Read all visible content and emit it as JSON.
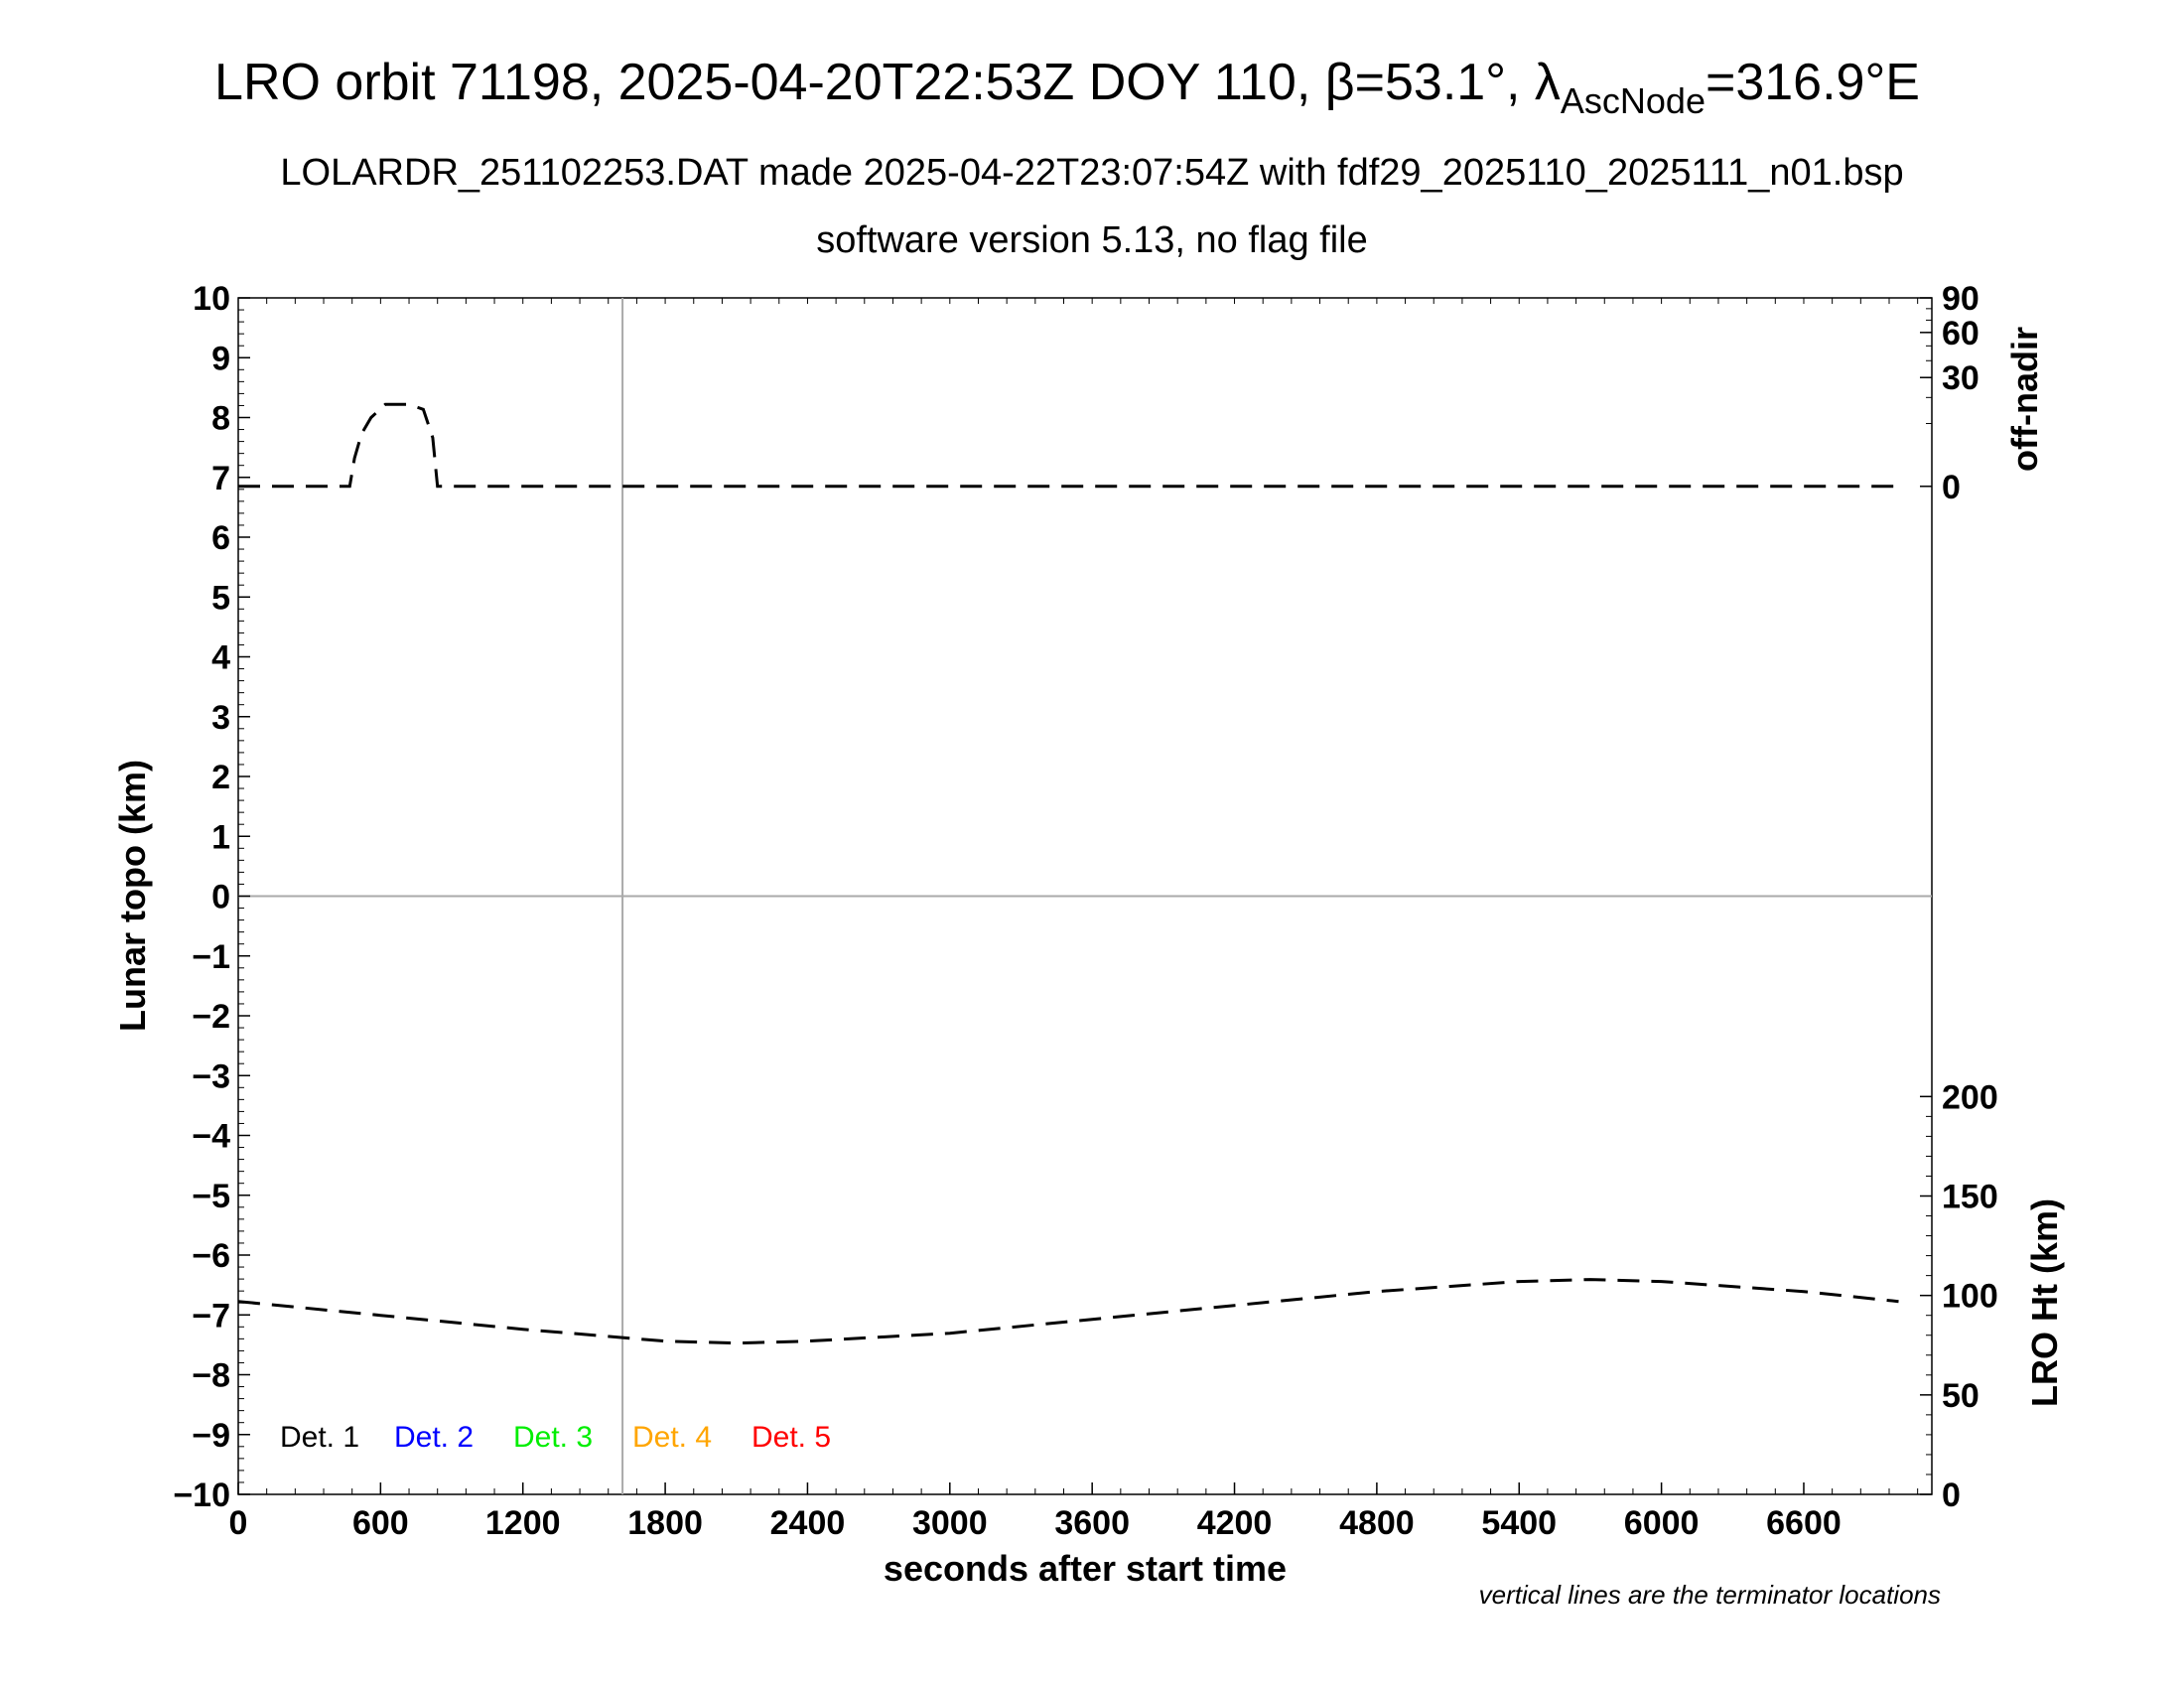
{
  "title": {
    "main_prefix": "LRO orbit 71198, 2025-04-20T22:53Z DOY 110, β=53.1°, λ",
    "main_sub": "AscNode",
    "main_suffix": "=316.9°E",
    "line2": "LOLARDR_251102253.DAT made 2025-04-22T23:07:54Z with fdf29_2025110_2025111_n01.bsp",
    "line3": "software version 5.13, no flag file"
  },
  "footnote": "vertical lines are the terminator locations",
  "legend": [
    {
      "label": "Det. 1",
      "color": "#000000"
    },
    {
      "label": "Det. 2",
      "color": "#0000ff"
    },
    {
      "label": "Det. 3",
      "color": "#00ee00"
    },
    {
      "label": "Det. 4",
      "color": "#ffa500"
    },
    {
      "label": "Det. 5",
      "color": "#ff0000"
    }
  ],
  "chart_data": {
    "type": "line",
    "xlabel": "seconds after start time",
    "ylabel": "Lunar topo (km)",
    "xlim": [
      0,
      7140
    ],
    "ylim": [
      -10,
      10
    ],
    "x_ticks": [
      "0",
      "600",
      "1200",
      "1800",
      "2400",
      "3000",
      "3600",
      "4200",
      "4800",
      "5400",
      "6000",
      "6600"
    ],
    "y_ticks": [
      "10",
      "9",
      "8",
      "7",
      "6",
      "5",
      "4",
      "3",
      "2",
      "1",
      "0",
      "−1",
      "−2",
      "−3",
      "−4",
      "−5",
      "−6",
      "−7",
      "−8",
      "−9",
      "−10"
    ],
    "terminator_x": [
      1620
    ],
    "right_axis_top": {
      "label": "off-nadir",
      "tick_labels": [
        "90",
        "60",
        "30",
        "0"
      ],
      "tick_values": [
        90,
        60,
        30,
        0
      ]
    },
    "right_axis_bottom": {
      "label": "LRO Ht (km)",
      "tick_labels": [
        "200",
        "150",
        "100",
        "50",
        "0"
      ],
      "tick_values": [
        200,
        150,
        100,
        50,
        0
      ],
      "range": [
        0,
        200
      ]
    },
    "series": [
      {
        "axis": "off-nadir",
        "style": "dashed",
        "x": [
          0,
          470,
          490,
          520,
          560,
          620,
          720,
          780,
          820,
          840,
          1200,
          2400,
          3600,
          4800,
          6000,
          7000
        ],
        "values": [
          0,
          0,
          2,
          7,
          12,
          17,
          17,
          15,
          6,
          0,
          0,
          0,
          0,
          0,
          0,
          0
        ]
      },
      {
        "axis": "LRO Ht (km)",
        "style": "dashed",
        "x": [
          0,
          600,
          1200,
          1800,
          2100,
          2400,
          3000,
          3600,
          4200,
          4800,
          5400,
          5700,
          6000,
          6600,
          7000
        ],
        "values": [
          97,
          90,
          83,
          77,
          76,
          77,
          81,
          88,
          95,
          102,
          107,
          108,
          107,
          102,
          97
        ]
      }
    ]
  }
}
